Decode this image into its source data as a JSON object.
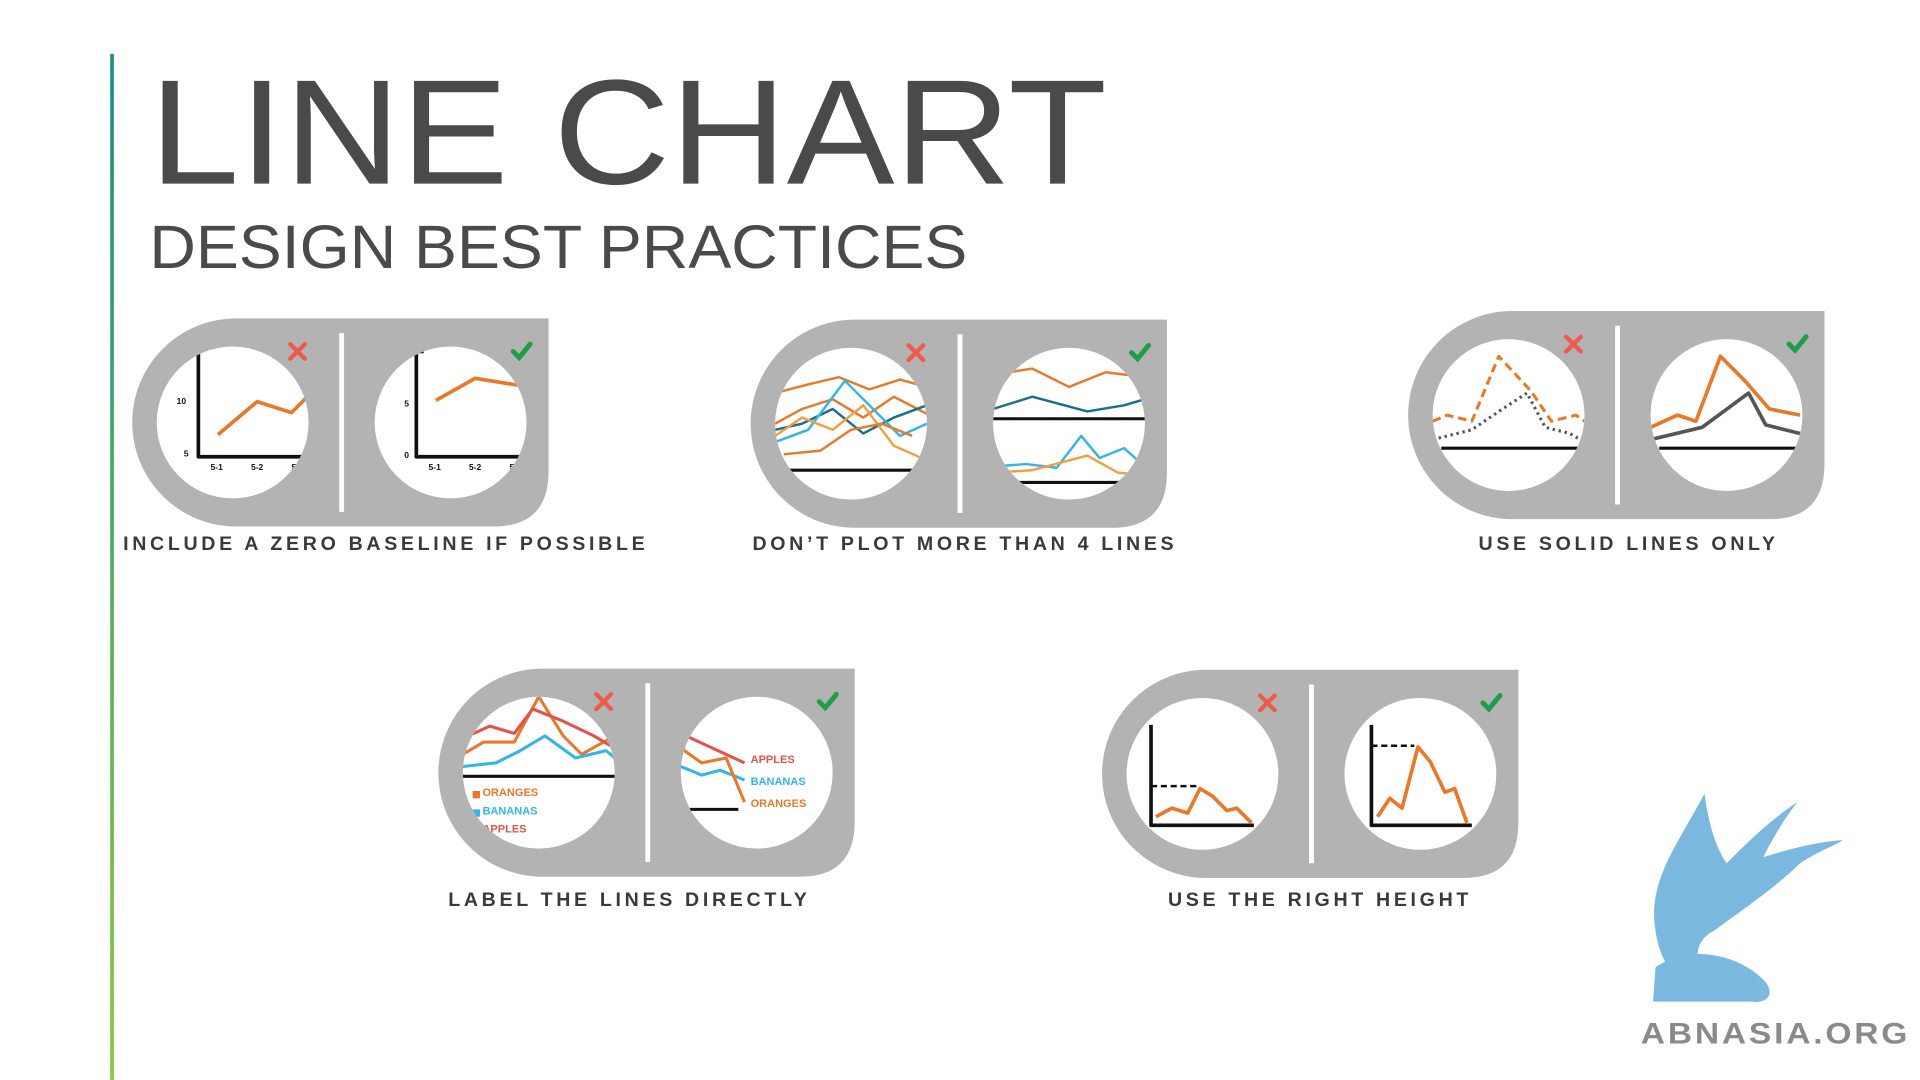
{
  "header": {
    "title": "LINE CHART",
    "subtitle": "DESIGN BEST PRACTICES"
  },
  "panels": [
    {
      "caption": "INCLUDE A ZERO BASELINE IF POSSIBLE",
      "bad_labels": [
        "10",
        "5",
        "5-1",
        "5-2",
        "5"
      ],
      "good_labels": [
        "5",
        "0",
        "5-1",
        "5-2",
        "5"
      ]
    },
    {
      "caption": "DON’T PLOT MORE THAN 4 LINES"
    },
    {
      "caption": "USE SOLID LINES ONLY"
    },
    {
      "caption": "LABEL THE LINES DIRECTLY",
      "bad_labels": [
        "ORANGES",
        "BANANAS",
        "APPLES"
      ],
      "good_labels": [
        "APPLES",
        "BANANAS",
        "ORANGES"
      ]
    },
    {
      "caption": "USE THE RIGHT HEIGHT"
    }
  ],
  "logo": "ABNASIA.ORG"
}
